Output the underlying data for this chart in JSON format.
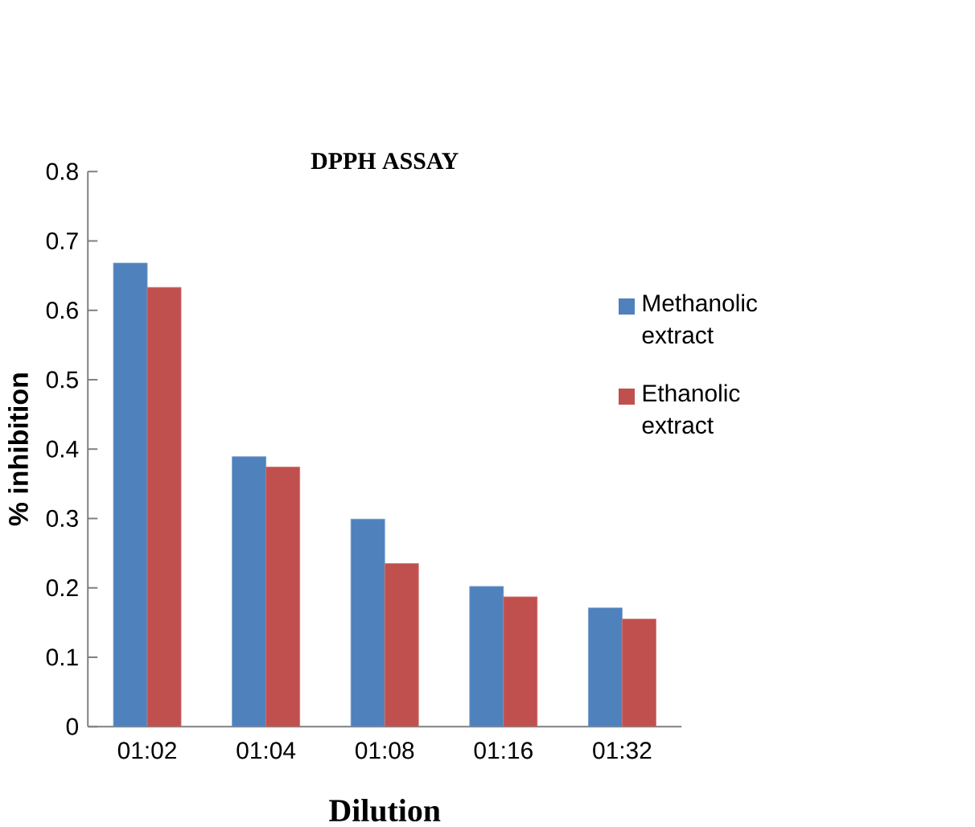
{
  "chart_data": {
    "type": "bar",
    "title": "DPPH ASSAY",
    "xlabel": "Dilution",
    "ylabel": "% inhibition",
    "categories": [
      "01:02",
      "01:04",
      "01:08",
      "01:16",
      "01:32"
    ],
    "series": [
      {
        "name": "Methanolic extract",
        "color": "#4f81bd",
        "values": [
          0.668,
          0.389,
          0.299,
          0.202,
          0.171
        ]
      },
      {
        "name": "Ethanolic extract",
        "color": "#c0504d",
        "values": [
          0.633,
          0.374,
          0.235,
          0.187,
          0.155
        ]
      }
    ],
    "ylim": [
      0,
      0.8
    ],
    "yticks": [
      0,
      0.1,
      0.2,
      0.3,
      0.4,
      0.5,
      0.6,
      0.7,
      0.8
    ],
    "grid": false,
    "legend": "right"
  }
}
